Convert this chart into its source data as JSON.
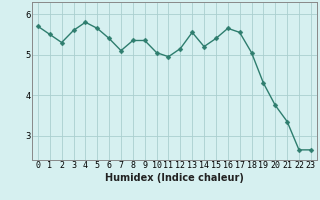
{
  "x": [
    0,
    1,
    2,
    3,
    4,
    5,
    6,
    7,
    8,
    9,
    10,
    11,
    12,
    13,
    14,
    15,
    16,
    17,
    18,
    19,
    20,
    21,
    22,
    23
  ],
  "y": [
    5.7,
    5.5,
    5.3,
    5.6,
    5.8,
    5.65,
    5.4,
    5.1,
    5.35,
    5.35,
    5.05,
    4.95,
    5.15,
    5.55,
    5.2,
    5.4,
    5.65,
    5.55,
    5.05,
    4.3,
    3.75,
    3.35,
    2.65,
    2.65
  ],
  "line_color": "#2e7d6e",
  "marker_color": "#2e7d6e",
  "bg_color": "#d6f0f0",
  "grid_color": "#aacfcf",
  "xlabel": "Humidex (Indice chaleur)",
  "xlim": [
    -0.5,
    23.5
  ],
  "ylim": [
    2.4,
    6.3
  ],
  "yticks": [
    3,
    4,
    5,
    6
  ],
  "xtick_labels": [
    "0",
    "1",
    "2",
    "3",
    "4",
    "5",
    "6",
    "7",
    "8",
    "9",
    "10",
    "11",
    "12",
    "13",
    "14",
    "15",
    "16",
    "17",
    "18",
    "19",
    "20",
    "21",
    "22",
    "23"
  ],
  "xlabel_fontsize": 7,
  "tick_fontsize": 6,
  "linewidth": 1.0,
  "markersize": 2.5
}
